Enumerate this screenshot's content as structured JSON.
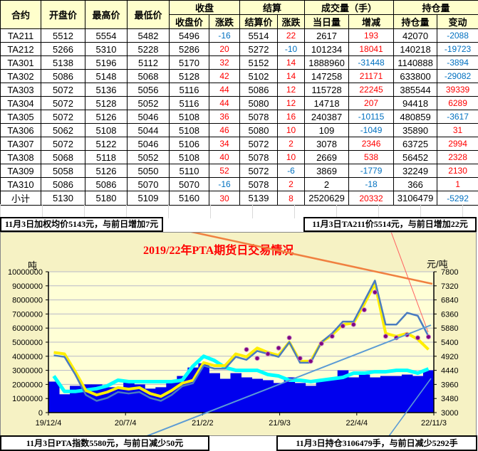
{
  "table": {
    "group_headers": {
      "close": "收盘",
      "settle": "结算",
      "volume": "成交量（手）",
      "oi": "持仓量"
    },
    "headers": [
      "合约",
      "开盘价",
      "最高价",
      "最低价",
      "收盘价",
      "涨跌",
      "结算价",
      "涨跌",
      "当日量",
      "增减",
      "持仓量",
      "变动"
    ],
    "rows": [
      [
        "TA211",
        "5512",
        "5554",
        "5482",
        "5496",
        "-16",
        "5514",
        "22",
        "2617",
        "193",
        "42070",
        "-2088"
      ],
      [
        "TA212",
        "5266",
        "5310",
        "5228",
        "5286",
        "20",
        "5272",
        "-10",
        "101234",
        "18041",
        "140218",
        "-19723"
      ],
      [
        "TA301",
        "5138",
        "5196",
        "5112",
        "5170",
        "32",
        "5152",
        "14",
        "1888960",
        "-31448",
        "1140888",
        "-3894"
      ],
      [
        "TA302",
        "5086",
        "5148",
        "5068",
        "5128",
        "42",
        "5102",
        "14",
        "147258",
        "21171",
        "633800",
        "-29082"
      ],
      [
        "TA303",
        "5072",
        "5136",
        "5056",
        "5116",
        "44",
        "5086",
        "12",
        "115728",
        "22245",
        "385544",
        "39339"
      ],
      [
        "TA304",
        "5072",
        "5128",
        "5052",
        "5116",
        "44",
        "5080",
        "12",
        "14718",
        "207",
        "94418",
        "6289"
      ],
      [
        "TA305",
        "5072",
        "5126",
        "5046",
        "5108",
        "36",
        "5078",
        "16",
        "240387",
        "-10115",
        "480859",
        "-3617"
      ],
      [
        "TA306",
        "5062",
        "5108",
        "5044",
        "5108",
        "46",
        "5080",
        "10",
        "109",
        "-1049",
        "35890",
        "31"
      ],
      [
        "TA307",
        "5072",
        "5122",
        "5046",
        "5106",
        "34",
        "5072",
        "2",
        "3078",
        "2346",
        "63725",
        "2994"
      ],
      [
        "TA308",
        "5068",
        "5118",
        "5052",
        "5108",
        "40",
        "5078",
        "10",
        "2669",
        "538",
        "56452",
        "2328"
      ],
      [
        "TA309",
        "5058",
        "5126",
        "5050",
        "5110",
        "52",
        "5072",
        "-6",
        "3869",
        "-1779",
        "32249",
        "2130"
      ],
      [
        "TA310",
        "5086",
        "5086",
        "5070",
        "5070",
        "-16",
        "5078",
        "2",
        "2",
        "-18",
        "366",
        "1"
      ],
      [
        "小计",
        "5130",
        "5180",
        "5109",
        "5160",
        "30",
        "5139",
        "8",
        "2520629",
        "20332",
        "3106479",
        "-5292"
      ]
    ]
  },
  "callouts": {
    "top_left": "11月3日加权均价5143元，与前日增加7元",
    "top_right": "11月3日TA211价5514元，与前日增加22元",
    "bottom_left": "11月3日PTA指数5580元，与前日减少50元",
    "bottom_right": "11月3日持仓3106479手，与前日减少5292手"
  },
  "colors": {
    "up": "#ff0000",
    "down": "#0070c0",
    "header_bg": "#ffffcc",
    "bars": "#0000ee",
    "price_line": "#4a7cc0",
    "avg_line": "#ffee00",
    "oi_line": "#00ffff",
    "index_dots": "#800080"
  },
  "chart_data": {
    "type": "bar+line",
    "title": "2019/22年PTA期货日交易情况",
    "ylabel_left": "吨",
    "ylabel_right": "元/吨",
    "ylim_left": [
      0,
      10000000
    ],
    "ylim_right": [
      3000,
      7800
    ],
    "yticks_left": [
      "0",
      "1000000",
      "2000000",
      "3000000",
      "4000000",
      "5000000",
      "6000000",
      "7000000",
      "8000000",
      "9000000",
      "10000000"
    ],
    "yticks_right": [
      "3000",
      "3480",
      "3960",
      "4440",
      "4920",
      "5400",
      "5880",
      "6360",
      "6840",
      "7320",
      "7800"
    ],
    "xticks": [
      "19/12/4",
      "20/7/4",
      "21/2/2",
      "21/9/3",
      "22/4/4",
      "22/11/3"
    ],
    "grid": true,
    "x": [
      "2019-12",
      "2020-01",
      "2020-02",
      "2020-03",
      "2020-04",
      "2020-05",
      "2020-06",
      "2020-07",
      "2020-08",
      "2020-09",
      "2020-10",
      "2020-11",
      "2020-12",
      "2021-01",
      "2021-02",
      "2021-03",
      "2021-04",
      "2021-05",
      "2021-06",
      "2021-07",
      "2021-08",
      "2021-09",
      "2021-10",
      "2021-11",
      "2021-12",
      "2022-01",
      "2022-02",
      "2022-03",
      "2022-04",
      "2022-05",
      "2022-06",
      "2022-07",
      "2022-08",
      "2022-09",
      "2022-10",
      "2022-11"
    ],
    "volume": [
      2200000,
      1300000,
      1900000,
      2000000,
      2000000,
      1800000,
      1800000,
      2300000,
      2000000,
      1700000,
      1800000,
      2200000,
      2600000,
      3200000,
      3500000,
      2800000,
      2400000,
      2800000,
      2500000,
      2400000,
      2300000,
      2100000,
      2500000,
      2100000,
      1900000,
      2300000,
      2400000,
      3000000,
      2500000,
      2700000,
      2500000,
      2600000,
      2600000,
      2700000,
      2600000,
      3000000
    ],
    "open_interest": [
      2600000,
      1500000,
      1500000,
      1600000,
      1700000,
      1900000,
      2300000,
      2200000,
      2200000,
      2200000,
      2200000,
      2200000,
      2300000,
      3300000,
      4000000,
      3700000,
      3200000,
      3000000,
      3000000,
      3000000,
      2700000,
      2600000,
      2300000,
      2300000,
      2200000,
      2300000,
      2400000,
      2500000,
      2800000,
      2800000,
      2900000,
      2900000,
      3000000,
      3000000,
      2800000,
      3100000
    ],
    "price_ta": [
      4950,
      4900,
      4300,
      3600,
      3400,
      3500,
      3700,
      3650,
      3700,
      3500,
      3400,
      3600,
      3900,
      4000,
      4600,
      4500,
      4500,
      4900,
      4800,
      5100,
      5000,
      4900,
      5400,
      4700,
      4700,
      5400,
      5700,
      6100,
      6100,
      6800,
      7500,
      6000,
      6000,
      6400,
      6300,
      5600
    ],
    "weighted_avg": [
      5050,
      5000,
      4400,
      3750,
      3600,
      3700,
      3850,
      3800,
      3850,
      3650,
      3550,
      3750,
      4000,
      4100,
      4700,
      4600,
      4600,
      5000,
      4900,
      5200,
      5050,
      4950,
      5400,
      4750,
      4750,
      5400,
      5650,
      6000,
      6050,
      6700,
      7400,
      5700,
      5600,
      5700,
      5500,
      5150
    ],
    "pta_index": [
      null,
      null,
      null,
      null,
      null,
      null,
      null,
      null,
      null,
      null,
      null,
      null,
      null,
      null,
      null,
      null,
      null,
      null,
      5150,
      4850,
      5000,
      5200,
      5550,
      4850,
      4750,
      5350,
      5600,
      5950,
      6000,
      6500,
      7100,
      5600,
      5550,
      5650,
      5550,
      5580
    ]
  }
}
